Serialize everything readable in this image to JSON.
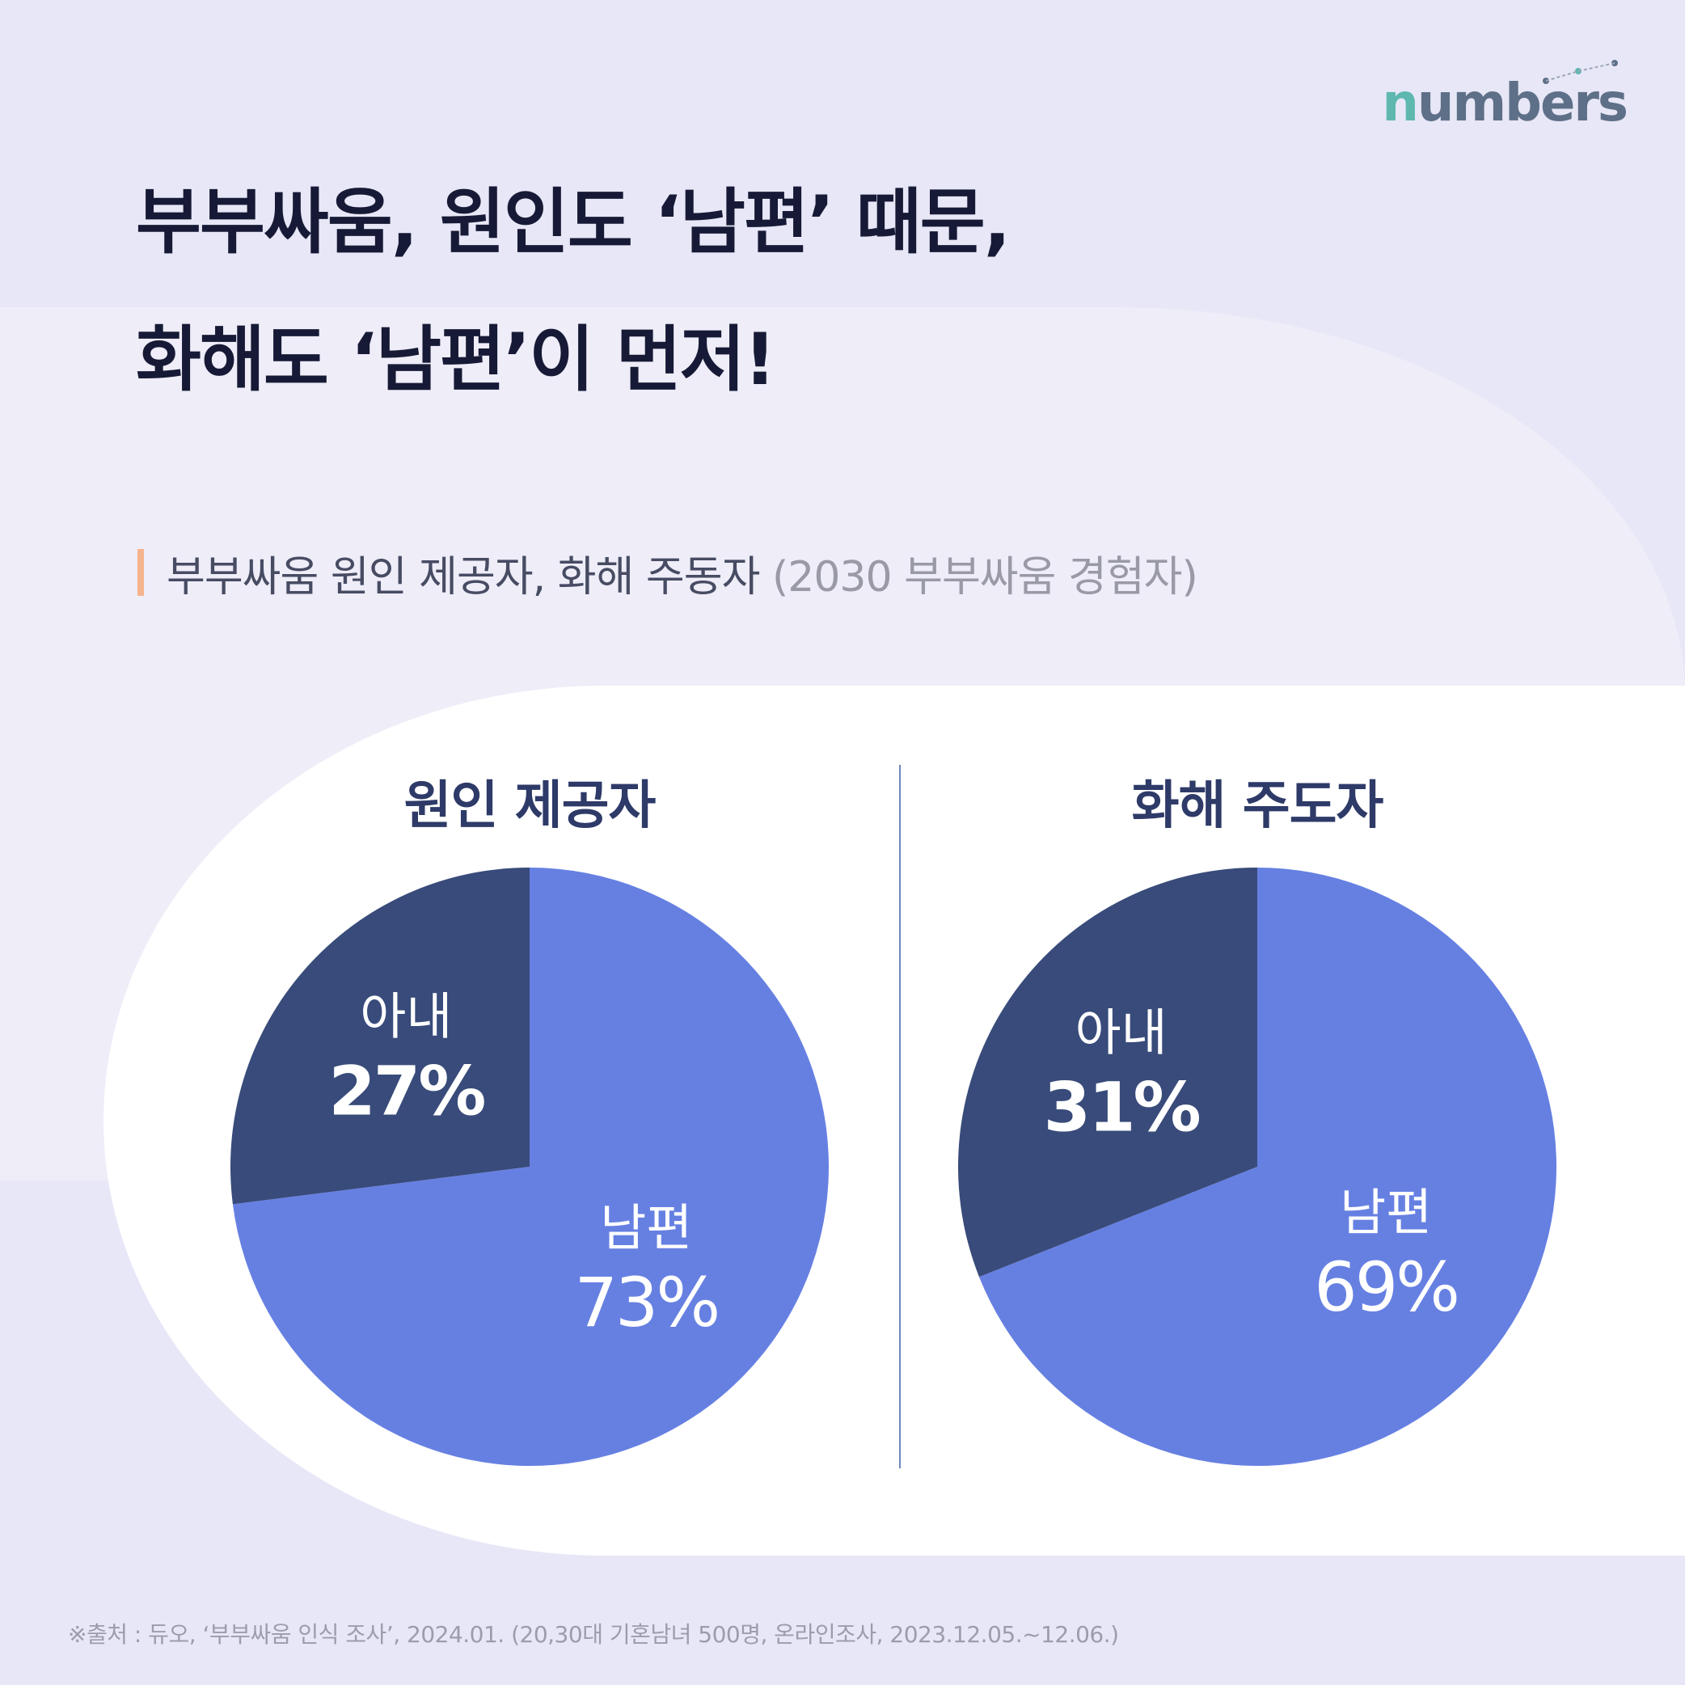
{
  "brand": {
    "logo_text": "numbers"
  },
  "title": {
    "line1": "부부싸움, 원인도 ‘남편’ 때문,",
    "line2": "화해도 ‘남편’이 먼저!"
  },
  "subtitle": {
    "main": "부부싸움 원인 제공자, 화해 주동자",
    "paren": "(2030 부부싸움 경험자)"
  },
  "colors": {
    "husband": "#6680e2",
    "wife": "#384b7a",
    "title": "#171a36",
    "accent_bar": "#f5b48e"
  },
  "chart_data": [
    {
      "type": "pie",
      "title": "원인 제공자",
      "slices": [
        {
          "label": "남편",
          "value": 73,
          "display": "73%"
        },
        {
          "label": "아내",
          "value": 27,
          "display": "27%"
        }
      ]
    },
    {
      "type": "pie",
      "title": "화해 주도자",
      "slices": [
        {
          "label": "남편",
          "value": 69,
          "display": "69%"
        },
        {
          "label": "아내",
          "value": 31,
          "display": "31%"
        }
      ]
    }
  ],
  "footnote": "※출처 : 듀오, ‘부부싸움 인식 조사’, 2024.01. (20,30대 기혼남녀 500명, 온라인조사, 2023.12.05.~12.06.)"
}
